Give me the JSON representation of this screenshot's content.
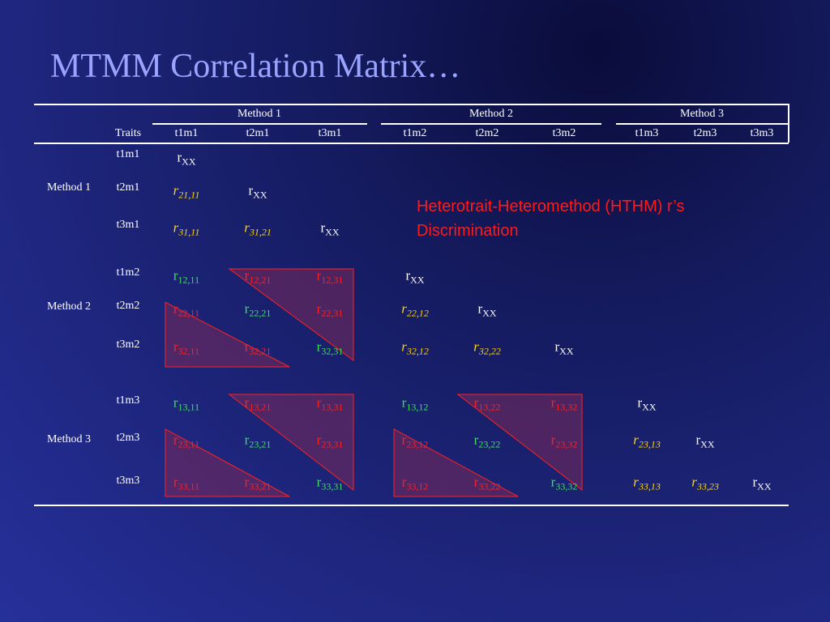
{
  "title": "MTMM Correlation Matrix…",
  "annotation": {
    "line1": "Heterotrait-Heteromethod (HTHM) r’s",
    "line2": "Discrimination"
  },
  "header": {
    "methods": [
      "Method 1",
      "Method 2",
      "Method 3"
    ],
    "traits_label": "Traits",
    "columns": [
      "t1m1",
      "t2m1",
      "t3m1",
      "t1m2",
      "t2m2",
      "t3m2",
      "t1m3",
      "t2m3",
      "t3m3"
    ]
  },
  "rows": {
    "methods": [
      "Method 1",
      "Method 2",
      "Method 3"
    ],
    "traits": [
      "t1m1",
      "t2m1",
      "t3m1",
      "t1m2",
      "t2m2",
      "t3m2",
      "t1m3",
      "t2m3",
      "t3m3"
    ]
  },
  "colors": {
    "reliability": "#ffffff",
    "heterotrait_monomethod": "#ffd600",
    "monotrait_heteromethod": "#3fe05a",
    "heterotrait_heteromethod": "#ff2020",
    "title": "#9aa4ff",
    "triangle_fill": "#7a2a5a"
  },
  "cells": [
    {
      "r": 0,
      "c": 0,
      "base": "r",
      "sub": "XX",
      "type": "rel"
    },
    {
      "r": 1,
      "c": 0,
      "base": "r",
      "sub": "21,11",
      "type": "htmm"
    },
    {
      "r": 1,
      "c": 1,
      "base": "r",
      "sub": "XX",
      "type": "rel"
    },
    {
      "r": 2,
      "c": 0,
      "base": "r",
      "sub": "31,11",
      "type": "htmm"
    },
    {
      "r": 2,
      "c": 1,
      "base": "r",
      "sub": "31,21",
      "type": "htmm"
    },
    {
      "r": 2,
      "c": 2,
      "base": "r",
      "sub": "XX",
      "type": "rel"
    },
    {
      "r": 3,
      "c": 0,
      "base": "r",
      "sub": "12,11",
      "type": "mthm"
    },
    {
      "r": 3,
      "c": 1,
      "base": "r",
      "sub": "12,21",
      "type": "hthm"
    },
    {
      "r": 3,
      "c": 2,
      "base": "r",
      "sub": "12,31",
      "type": "hthm"
    },
    {
      "r": 3,
      "c": 3,
      "base": "r",
      "sub": "XX",
      "type": "rel"
    },
    {
      "r": 4,
      "c": 0,
      "base": "r",
      "sub": "22,11",
      "type": "hthm"
    },
    {
      "r": 4,
      "c": 1,
      "base": "r",
      "sub": "22,21",
      "type": "mthm"
    },
    {
      "r": 4,
      "c": 2,
      "base": "r",
      "sub": "22,31",
      "type": "hthm"
    },
    {
      "r": 4,
      "c": 3,
      "base": "r",
      "sub": "22,12",
      "type": "htmm"
    },
    {
      "r": 4,
      "c": 4,
      "base": "r",
      "sub": "XX",
      "type": "rel"
    },
    {
      "r": 5,
      "c": 0,
      "base": "r",
      "sub": "32,11",
      "type": "hthm"
    },
    {
      "r": 5,
      "c": 1,
      "base": "r",
      "sub": "32,21",
      "type": "hthm"
    },
    {
      "r": 5,
      "c": 2,
      "base": "r",
      "sub": "32,31",
      "type": "mthm"
    },
    {
      "r": 5,
      "c": 3,
      "base": "r",
      "sub": "32,12",
      "type": "htmm"
    },
    {
      "r": 5,
      "c": 4,
      "base": "r",
      "sub": "32,22",
      "type": "htmm"
    },
    {
      "r": 5,
      "c": 5,
      "base": "r",
      "sub": "XX",
      "type": "rel"
    },
    {
      "r": 6,
      "c": 0,
      "base": "r",
      "sub": "13,11",
      "type": "mthm"
    },
    {
      "r": 6,
      "c": 1,
      "base": "r",
      "sub": "13,21",
      "type": "hthm"
    },
    {
      "r": 6,
      "c": 2,
      "base": "r",
      "sub": "13,31",
      "type": "hthm"
    },
    {
      "r": 6,
      "c": 3,
      "base": "r",
      "sub": "13,12",
      "type": "mthm"
    },
    {
      "r": 6,
      "c": 4,
      "base": "r",
      "sub": "13,22",
      "type": "hthm"
    },
    {
      "r": 6,
      "c": 5,
      "base": "r",
      "sub": "13,32",
      "type": "hthm"
    },
    {
      "r": 6,
      "c": 6,
      "base": "r",
      "sub": "XX",
      "type": "rel"
    },
    {
      "r": 7,
      "c": 0,
      "base": "r",
      "sub": "23,11",
      "type": "hthm"
    },
    {
      "r": 7,
      "c": 1,
      "base": "r",
      "sub": "23,21",
      "type": "mthm"
    },
    {
      "r": 7,
      "c": 2,
      "base": "r",
      "sub": "23,31",
      "type": "hthm"
    },
    {
      "r": 7,
      "c": 3,
      "base": "r",
      "sub": "23,12",
      "type": "hthm"
    },
    {
      "r": 7,
      "c": 4,
      "base": "r",
      "sub": "23,22",
      "type": "mthm"
    },
    {
      "r": 7,
      "c": 5,
      "base": "r",
      "sub": "23,32",
      "type": "hthm"
    },
    {
      "r": 7,
      "c": 6,
      "base": "r",
      "sub": "23,13",
      "type": "htmm"
    },
    {
      "r": 7,
      "c": 7,
      "base": "r",
      "sub": "XX",
      "type": "rel"
    },
    {
      "r": 8,
      "c": 0,
      "base": "r",
      "sub": "33,11",
      "type": "hthm"
    },
    {
      "r": 8,
      "c": 1,
      "base": "r",
      "sub": "33,21",
      "type": "hthm"
    },
    {
      "r": 8,
      "c": 2,
      "base": "r",
      "sub": "33,31",
      "type": "mthm"
    },
    {
      "r": 8,
      "c": 3,
      "base": "r",
      "sub": "33,12",
      "type": "hthm"
    },
    {
      "r": 8,
      "c": 4,
      "base": "r",
      "sub": "33,22",
      "type": "hthm"
    },
    {
      "r": 8,
      "c": 5,
      "base": "r",
      "sub": "33,32",
      "type": "mthm"
    },
    {
      "r": 8,
      "c": 6,
      "base": "r",
      "sub": "33,13",
      "type": "htmm"
    },
    {
      "r": 8,
      "c": 7,
      "base": "r",
      "sub": "33,23",
      "type": "htmm"
    },
    {
      "r": 8,
      "c": 8,
      "base": "r",
      "sub": "XX",
      "type": "rel"
    }
  ],
  "hthm_blocks": [
    {
      "row_block": 1,
      "col_block": 0
    },
    {
      "row_block": 2,
      "col_block": 0
    },
    {
      "row_block": 2,
      "col_block": 1
    }
  ]
}
